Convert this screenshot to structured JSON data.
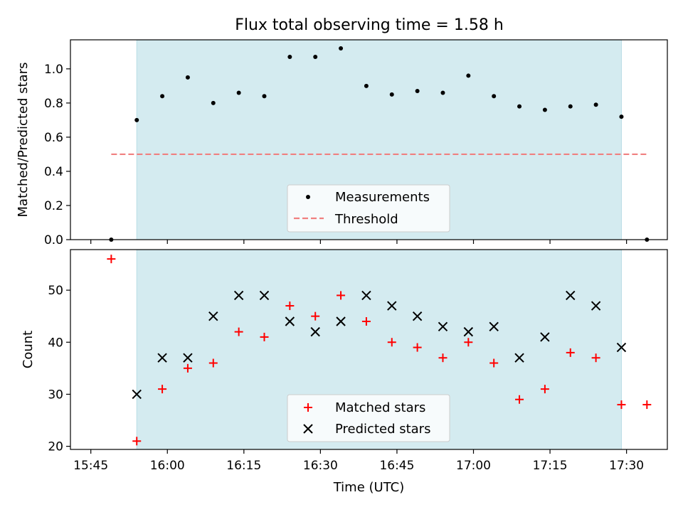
{
  "title": "Flux total observing time = 1.58 h",
  "colors": {
    "observing_band": "#d4ebf0",
    "measurement": "#000000",
    "threshold": "#f08080",
    "matched": "#ff0000",
    "predicted": "#000000"
  },
  "chart_data": [
    {
      "type": "scatter",
      "ylabel": "Matched/Predicted stars",
      "xlim": [
        "15:41",
        "17:38"
      ],
      "ylim": [
        0,
        1.17
      ],
      "yticks": [
        "0.0",
        "0.2",
        "0.4",
        "0.6",
        "0.8",
        "1.0"
      ],
      "ytick_values": [
        0,
        0.2,
        0.4,
        0.6,
        0.8,
        1.0
      ],
      "observing_window": [
        "15:54",
        "17:29"
      ],
      "threshold": {
        "name": "Threshold",
        "value": 0.5,
        "x_range": [
          "15:49",
          "17:34"
        ]
      },
      "series": [
        {
          "name": "Measurements",
          "x": [
            "15:49",
            "15:54",
            "15:59",
            "16:04",
            "16:09",
            "16:14",
            "16:19",
            "16:24",
            "16:29",
            "16:34",
            "16:39",
            "16:44",
            "16:49",
            "16:54",
            "16:59",
            "17:04",
            "17:09",
            "17:14",
            "17:19",
            "17:24",
            "17:29",
            "17:34"
          ],
          "y": [
            0.0,
            0.7,
            0.84,
            0.95,
            0.8,
            0.86,
            0.84,
            1.07,
            1.07,
            1.12,
            0.9,
            0.85,
            0.87,
            0.86,
            0.96,
            0.84,
            0.78,
            0.76,
            0.78,
            0.79,
            0.72,
            0.0
          ]
        }
      ],
      "legend": {
        "position": "lower-center",
        "entries": [
          "Measurements",
          "Threshold"
        ]
      }
    },
    {
      "type": "scatter",
      "xlabel": "Time (UTC)",
      "ylabel": "Count",
      "xlim": [
        "15:41",
        "17:38"
      ],
      "ylim": [
        19.4,
        57.8
      ],
      "xticks": [
        "15:45",
        "16:00",
        "16:15",
        "16:30",
        "16:45",
        "17:00",
        "17:15",
        "17:30"
      ],
      "yticks": [
        "20",
        "30",
        "40",
        "50"
      ],
      "ytick_values": [
        20,
        30,
        40,
        50
      ],
      "observing_window": [
        "15:54",
        "17:29"
      ],
      "series": [
        {
          "name": "Matched stars",
          "x": [
            "15:49",
            "15:54",
            "15:59",
            "16:04",
            "16:09",
            "16:14",
            "16:19",
            "16:24",
            "16:29",
            "16:34",
            "16:39",
            "16:44",
            "16:49",
            "16:54",
            "16:59",
            "17:04",
            "17:09",
            "17:14",
            "17:19",
            "17:24",
            "17:29",
            "17:34"
          ],
          "y": [
            56,
            21,
            31,
            35,
            36,
            42,
            41,
            47,
            45,
            49,
            44,
            40,
            39,
            37,
            40,
            36,
            29,
            31,
            38,
            37,
            28,
            28
          ]
        },
        {
          "name": "Predicted stars",
          "x": [
            "15:54",
            "15:59",
            "16:04",
            "16:09",
            "16:14",
            "16:19",
            "16:24",
            "16:29",
            "16:34",
            "16:39",
            "16:44",
            "16:49",
            "16:54",
            "16:59",
            "17:04",
            "17:09",
            "17:14",
            "17:19",
            "17:24",
            "17:29"
          ],
          "y": [
            30,
            37,
            37,
            45,
            49,
            49,
            44,
            42,
            44,
            49,
            47,
            45,
            43,
            42,
            43,
            37,
            41,
            49,
            47,
            39
          ]
        }
      ],
      "legend": {
        "position": "lower-center",
        "entries": [
          "Matched stars",
          "Predicted stars"
        ]
      }
    }
  ]
}
